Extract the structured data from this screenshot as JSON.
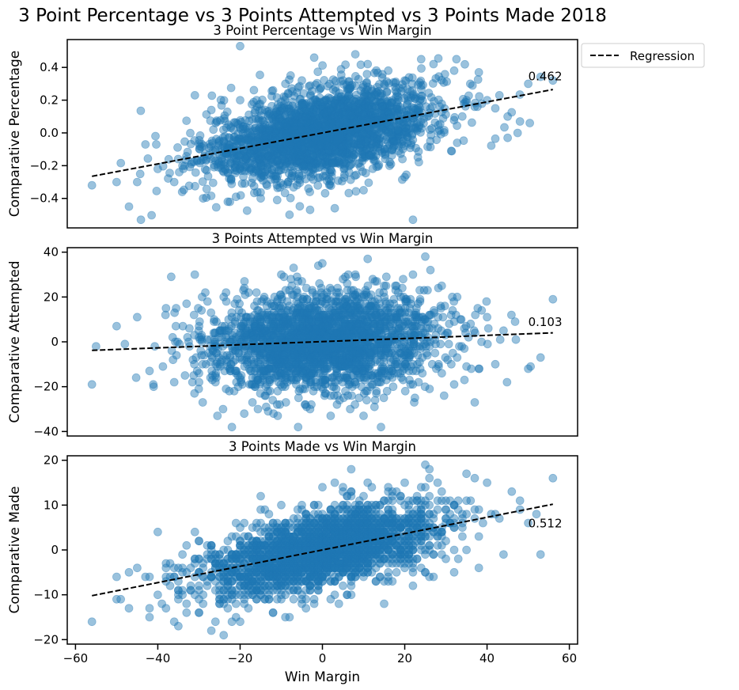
{
  "figure": {
    "suptitle": "3 Point Percentage vs 3 Points Attempted vs 3 Points Made 2018"
  },
  "legend": {
    "entries": [
      "Regression"
    ],
    "placement": "outside-top-right",
    "line_style": "dashed",
    "color": "#000000"
  },
  "point_color": "#1f77b4",
  "point_alpha": 0.45,
  "chart_data": [
    {
      "type": "scatter",
      "title": "3 Point Percentage vs Win Margin",
      "xlabel": "",
      "ylabel": "Comparative Percentage",
      "xlim": [
        -62,
        62
      ],
      "ylim": [
        -0.58,
        0.57
      ],
      "xticks": [],
      "yticks": [
        -0.4,
        -0.2,
        0.0,
        0.2,
        0.4
      ],
      "ytick_labels": [
        "−0.4",
        "−0.2",
        "0.0",
        "0.2",
        "0.4"
      ],
      "x_tick_labels_visible": false,
      "annotation": "0.462",
      "annotation_pos": [
        50,
        0.32
      ],
      "regression": {
        "x": [
          -56,
          56
        ],
        "y": [
          -0.265,
          0.265
        ]
      },
      "scatter_summary": {
        "count": 2460,
        "x_range": [
          -56,
          56
        ],
        "y_spread": 0.13,
        "y_min": -0.53,
        "y_max": 0.53
      },
      "points": [
        [
          -56,
          -0.32
        ],
        [
          -50,
          -0.3
        ],
        [
          -47,
          -0.45
        ],
        [
          -45,
          -0.3
        ],
        [
          -43,
          -0.07
        ],
        [
          -40,
          -0.22
        ],
        [
          -36,
          -0.3
        ],
        [
          -34,
          -0.2
        ],
        [
          -29,
          -0.4
        ],
        [
          -23,
          -0.42
        ],
        [
          -21,
          -0.39
        ],
        [
          -15,
          -0.4
        ],
        [
          -11,
          -0.41
        ],
        [
          -8,
          -0.5
        ],
        [
          -3,
          -0.47
        ],
        [
          3,
          -0.46
        ],
        [
          10,
          -0.35
        ],
        [
          20,
          -0.27
        ],
        [
          22,
          -0.53
        ],
        [
          -31,
          0.23
        ],
        [
          -27,
          0.14
        ],
        [
          -20,
          0.2
        ],
        [
          -16,
          0.2
        ],
        [
          -12,
          0.26
        ],
        [
          -9,
          0.3
        ],
        [
          -5,
          0.32
        ],
        [
          -2,
          0.46
        ],
        [
          5,
          0.32
        ],
        [
          8,
          0.48
        ],
        [
          11,
          0.42
        ],
        [
          16,
          0.38
        ],
        [
          20,
          0.32
        ],
        [
          24,
          0.45
        ],
        [
          27,
          0.42
        ],
        [
          32,
          0.38
        ],
        [
          38,
          0.37
        ],
        [
          40,
          0.2
        ],
        [
          42,
          0.15
        ],
        [
          45,
          0.1
        ],
        [
          48,
          0.07
        ],
        [
          50,
          0.3
        ],
        [
          56,
          0.32
        ],
        [
          -20,
          0.53
        ],
        [
          35,
          0.2
        ],
        [
          43,
          0.23
        ],
        [
          45,
          -0.03
        ]
      ]
    },
    {
      "type": "scatter",
      "title": "3 Points Attempted vs Win Margin",
      "xlabel": "",
      "ylabel": "Comparative Attempted",
      "xlim": [
        -62,
        62
      ],
      "ylim": [
        -42,
        42
      ],
      "xticks": [],
      "yticks": [
        -40,
        -20,
        0,
        20,
        40
      ],
      "ytick_labels": [
        "−40",
        "−20",
        "0",
        "20",
        "40"
      ],
      "x_tick_labels_visible": false,
      "annotation": "0.103",
      "annotation_pos": [
        50,
        7
      ],
      "regression": {
        "x": [
          -56,
          56
        ],
        "y": [
          -3.8,
          4.0
        ]
      },
      "scatter_summary": {
        "count": 2460,
        "x_range": [
          -56,
          56
        ],
        "y_spread": 11,
        "y_min": -38,
        "y_max": 38
      },
      "points": [
        [
          -56,
          -19
        ],
        [
          -50,
          7
        ],
        [
          -48,
          -1
        ],
        [
          -45,
          11
        ],
        [
          -42,
          -13
        ],
        [
          -41,
          -20
        ],
        [
          -38,
          15
        ],
        [
          -36,
          -18
        ],
        [
          -33,
          17
        ],
        [
          -30,
          -14
        ],
        [
          -26,
          -18
        ],
        [
          -24,
          20
        ],
        [
          -22,
          -38
        ],
        [
          -19,
          -32
        ],
        [
          -17,
          -27
        ],
        [
          -14,
          -24
        ],
        [
          -10,
          30
        ],
        [
          -7,
          33
        ],
        [
          -5,
          27
        ],
        [
          -3,
          -30
        ],
        [
          -1,
          34
        ],
        [
          2,
          -33
        ],
        [
          5,
          28
        ],
        [
          8,
          30
        ],
        [
          10,
          -33
        ],
        [
          15,
          25
        ],
        [
          18,
          25
        ],
        [
          22,
          30
        ],
        [
          25,
          38
        ],
        [
          29,
          25
        ],
        [
          32,
          -19
        ],
        [
          35,
          -11
        ],
        [
          38,
          -12
        ],
        [
          40,
          11
        ],
        [
          42,
          -10
        ],
        [
          44,
          5
        ],
        [
          47,
          1
        ],
        [
          50,
          -12
        ],
        [
          53,
          -7
        ],
        [
          56,
          19
        ],
        [
          -55,
          -2
        ],
        [
          36,
          8
        ]
      ]
    },
    {
      "type": "scatter",
      "title": "3 Points Made vs Win Margin",
      "xlabel": "Win Margin",
      "ylabel": "Comparative Made",
      "xlim": [
        -62,
        62
      ],
      "ylim": [
        -21,
        21
      ],
      "xticks": [
        -60,
        -40,
        -20,
        0,
        20,
        40,
        60
      ],
      "xtick_labels": [
        "−60",
        "−40",
        "−20",
        "0",
        "20",
        "40",
        "60"
      ],
      "yticks": [
        -20,
        -10,
        0,
        10,
        20
      ],
      "ytick_labels": [
        "−20",
        "−10",
        "0",
        "10",
        "20"
      ],
      "x_tick_labels_visible": true,
      "annotation": "0.512",
      "annotation_pos": [
        50,
        5
      ],
      "regression": {
        "x": [
          -56,
          56
        ],
        "y": [
          -10.2,
          10.2
        ]
      },
      "scatter_summary": {
        "count": 2460,
        "x_range": [
          -56,
          56
        ],
        "y_spread": 4.2,
        "y_min": -19,
        "y_max": 19
      },
      "points": [
        [
          -56,
          -16
        ],
        [
          -50,
          -6
        ],
        [
          -47,
          -13
        ],
        [
          -45,
          -4
        ],
        [
          -42,
          -13
        ],
        [
          -42,
          -15
        ],
        [
          -40,
          -10
        ],
        [
          -38,
          -4
        ],
        [
          -36,
          -16
        ],
        [
          -35,
          -17
        ],
        [
          -33,
          -14
        ],
        [
          -30,
          -8
        ],
        [
          -26,
          -16
        ],
        [
          -24,
          -19
        ],
        [
          -20,
          -16
        ],
        [
          -18,
          -9
        ],
        [
          -15,
          12
        ],
        [
          -12,
          -14
        ],
        [
          -8,
          -15
        ],
        [
          -5,
          10
        ],
        [
          3,
          15
        ],
        [
          5,
          14
        ],
        [
          10,
          12
        ],
        [
          15,
          -12
        ],
        [
          16,
          14
        ],
        [
          20,
          15
        ],
        [
          22,
          -8
        ],
        [
          25,
          19
        ],
        [
          28,
          15
        ],
        [
          30,
          -2
        ],
        [
          32,
          -5
        ],
        [
          35,
          17
        ],
        [
          37,
          16
        ],
        [
          40,
          15
        ],
        [
          42,
          8
        ],
        [
          44,
          -1
        ],
        [
          46,
          13
        ],
        [
          48,
          9
        ],
        [
          50,
          6
        ],
        [
          53,
          -1
        ],
        [
          56,
          16
        ],
        [
          -40,
          4
        ],
        [
          38,
          -4
        ]
      ]
    }
  ]
}
